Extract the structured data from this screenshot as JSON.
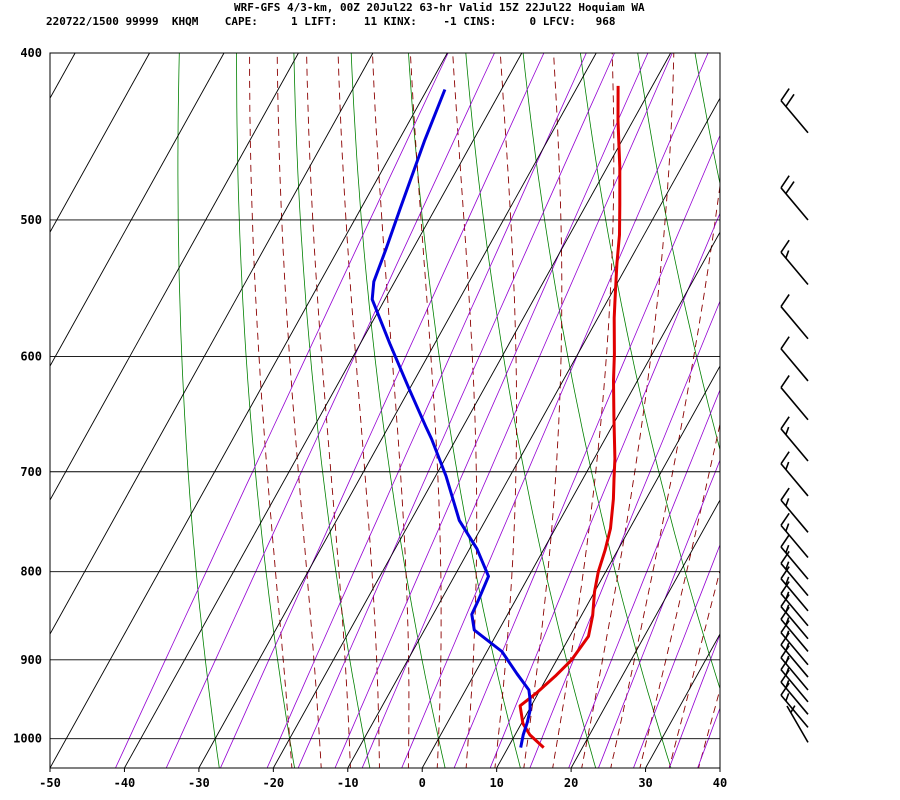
{
  "header": {
    "title": "WRF-GFS 4/3-km, 00Z 20Jul22 63-hr Valid 15Z 22Jul22 Hoquiam WA",
    "info": "220722/1500 99999  KHQM    CAPE:     1 LIFT:    11 KINX:    -1 CINS:     0 LFCV:   968"
  },
  "chart_data": {
    "type": "line",
    "subtype": "skew-t log-p sounding",
    "title": "WRF-GFS 4/3-km, 00Z 20Jul22 63-hr Valid 15Z 22Jul22 Hoquiam WA",
    "xlabel": "",
    "ylabel": "",
    "x_ticks": [
      -50,
      -40,
      -30,
      -20,
      -10,
      0,
      10,
      20,
      30,
      40
    ],
    "y_ticks": [
      400,
      500,
      600,
      700,
      800,
      900,
      1000
    ],
    "xlim": [
      -50,
      40
    ],
    "ylim": [
      1040,
      400
    ],
    "y_scale": "log",
    "grid": true,
    "series": [
      {
        "role": "temperature",
        "color": "#e00000",
        "points": [
          [
            14.8,
            1012
          ],
          [
            12.0,
            995
          ],
          [
            10.2,
            980
          ],
          [
            8.5,
            957
          ],
          [
            9.8,
            940
          ],
          [
            11.0,
            920
          ],
          [
            12.0,
            900
          ],
          [
            12.5,
            872
          ],
          [
            11.5,
            848
          ],
          [
            10.0,
            822
          ],
          [
            9.0,
            800
          ],
          [
            8.3,
            777
          ],
          [
            7.4,
            755
          ],
          [
            5.6,
            726
          ],
          [
            4.2,
            707
          ],
          [
            2.8,
            688
          ],
          [
            -0.5,
            650
          ],
          [
            -3.2,
            620
          ],
          [
            -5.1,
            598
          ],
          [
            -7.8,
            570
          ],
          [
            -8.9,
            558
          ],
          [
            -11.5,
            530
          ],
          [
            -13.3,
            510
          ],
          [
            -15.5,
            490
          ],
          [
            -18.3,
            466
          ],
          [
            -22.0,
            438
          ],
          [
            -24.6,
            418
          ]
        ]
      },
      {
        "role": "dewpoint",
        "color": "#0000dd",
        "points": [
          [
            11.7,
            1012
          ],
          [
            11.1,
            995
          ],
          [
            10.7,
            978
          ],
          [
            10.2,
            963
          ],
          [
            9.3,
            948
          ],
          [
            8.5,
            937
          ],
          [
            5.7,
            917
          ],
          [
            2.0,
            890
          ],
          [
            -3.3,
            865
          ],
          [
            -4.8,
            847
          ],
          [
            -5.0,
            830
          ],
          [
            -5.4,
            805
          ],
          [
            -9.0,
            776
          ],
          [
            -13.5,
            747
          ],
          [
            -18.6,
            704
          ],
          [
            -23.3,
            670
          ],
          [
            -25.0,
            659
          ],
          [
            -30.0,
            627
          ],
          [
            -36.0,
            590
          ],
          [
            -41.7,
            556
          ],
          [
            -42.8,
            543
          ],
          [
            -43.6,
            520
          ],
          [
            -44.7,
            493
          ],
          [
            -46.5,
            450
          ],
          [
            -47.6,
            420
          ]
        ]
      }
    ],
    "wind_barbs": [
      {
        "p": 1005,
        "dir": 330,
        "kt": 5
      },
      {
        "p": 985,
        "dir": 320,
        "kt": 15
      },
      {
        "p": 968,
        "dir": 320,
        "kt": 15
      },
      {
        "p": 952,
        "dir": 320,
        "kt": 15
      },
      {
        "p": 937,
        "dir": 320,
        "kt": 15
      },
      {
        "p": 921,
        "dir": 320,
        "kt": 15
      },
      {
        "p": 906,
        "dir": 320,
        "kt": 15
      },
      {
        "p": 890,
        "dir": 320,
        "kt": 15
      },
      {
        "p": 875,
        "dir": 320,
        "kt": 15
      },
      {
        "p": 860,
        "dir": 320,
        "kt": 15
      },
      {
        "p": 843,
        "dir": 320,
        "kt": 15
      },
      {
        "p": 826,
        "dir": 320,
        "kt": 15
      },
      {
        "p": 808,
        "dir": 320,
        "kt": 15
      },
      {
        "p": 785,
        "dir": 320,
        "kt": 15
      },
      {
        "p": 759,
        "dir": 320,
        "kt": 15
      },
      {
        "p": 723,
        "dir": 320,
        "kt": 15
      },
      {
        "p": 690,
        "dir": 320,
        "kt": 15
      },
      {
        "p": 653,
        "dir": 320,
        "kt": 10
      },
      {
        "p": 620,
        "dir": 320,
        "kt": 10
      },
      {
        "p": 586,
        "dir": 320,
        "kt": 10
      },
      {
        "p": 545,
        "dir": 320,
        "kt": 15
      },
      {
        "p": 500,
        "dir": 320,
        "kt": 20
      },
      {
        "p": 445,
        "dir": 320,
        "kt": 20
      }
    ],
    "grid_colors": {
      "isobar": "#000000",
      "isotherm": "#000000",
      "dry_adiabat": "#008000",
      "moist_adiabat": "#8b0000",
      "mixing_ratio": "#9400d3"
    }
  }
}
